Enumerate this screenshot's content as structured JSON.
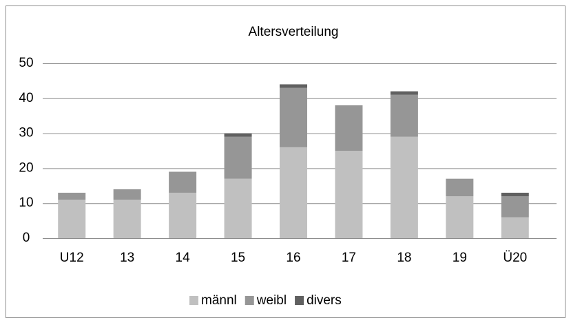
{
  "chart_data": {
    "type": "stacked_bar",
    "title": "Altersverteilung",
    "categories": [
      "U12",
      "13",
      "14",
      "15",
      "16",
      "17",
      "18",
      "19",
      "Ü20"
    ],
    "series": [
      {
        "name": "männl",
        "color": "#c0c0c0",
        "values": [
          11,
          11,
          13,
          17,
          26,
          25,
          29,
          12,
          6
        ]
      },
      {
        "name": "weibl",
        "color": "#969696",
        "values": [
          2,
          3,
          6,
          12,
          17,
          13,
          12,
          5,
          6
        ]
      },
      {
        "name": "divers",
        "color": "#606060",
        "values": [
          0,
          0,
          0,
          1,
          1,
          0,
          1,
          0,
          1
        ]
      }
    ],
    "ylim": [
      0,
      50
    ],
    "yticks": [
      0,
      10,
      20,
      30,
      40,
      50
    ],
    "grid": true,
    "legend": "bottom"
  }
}
